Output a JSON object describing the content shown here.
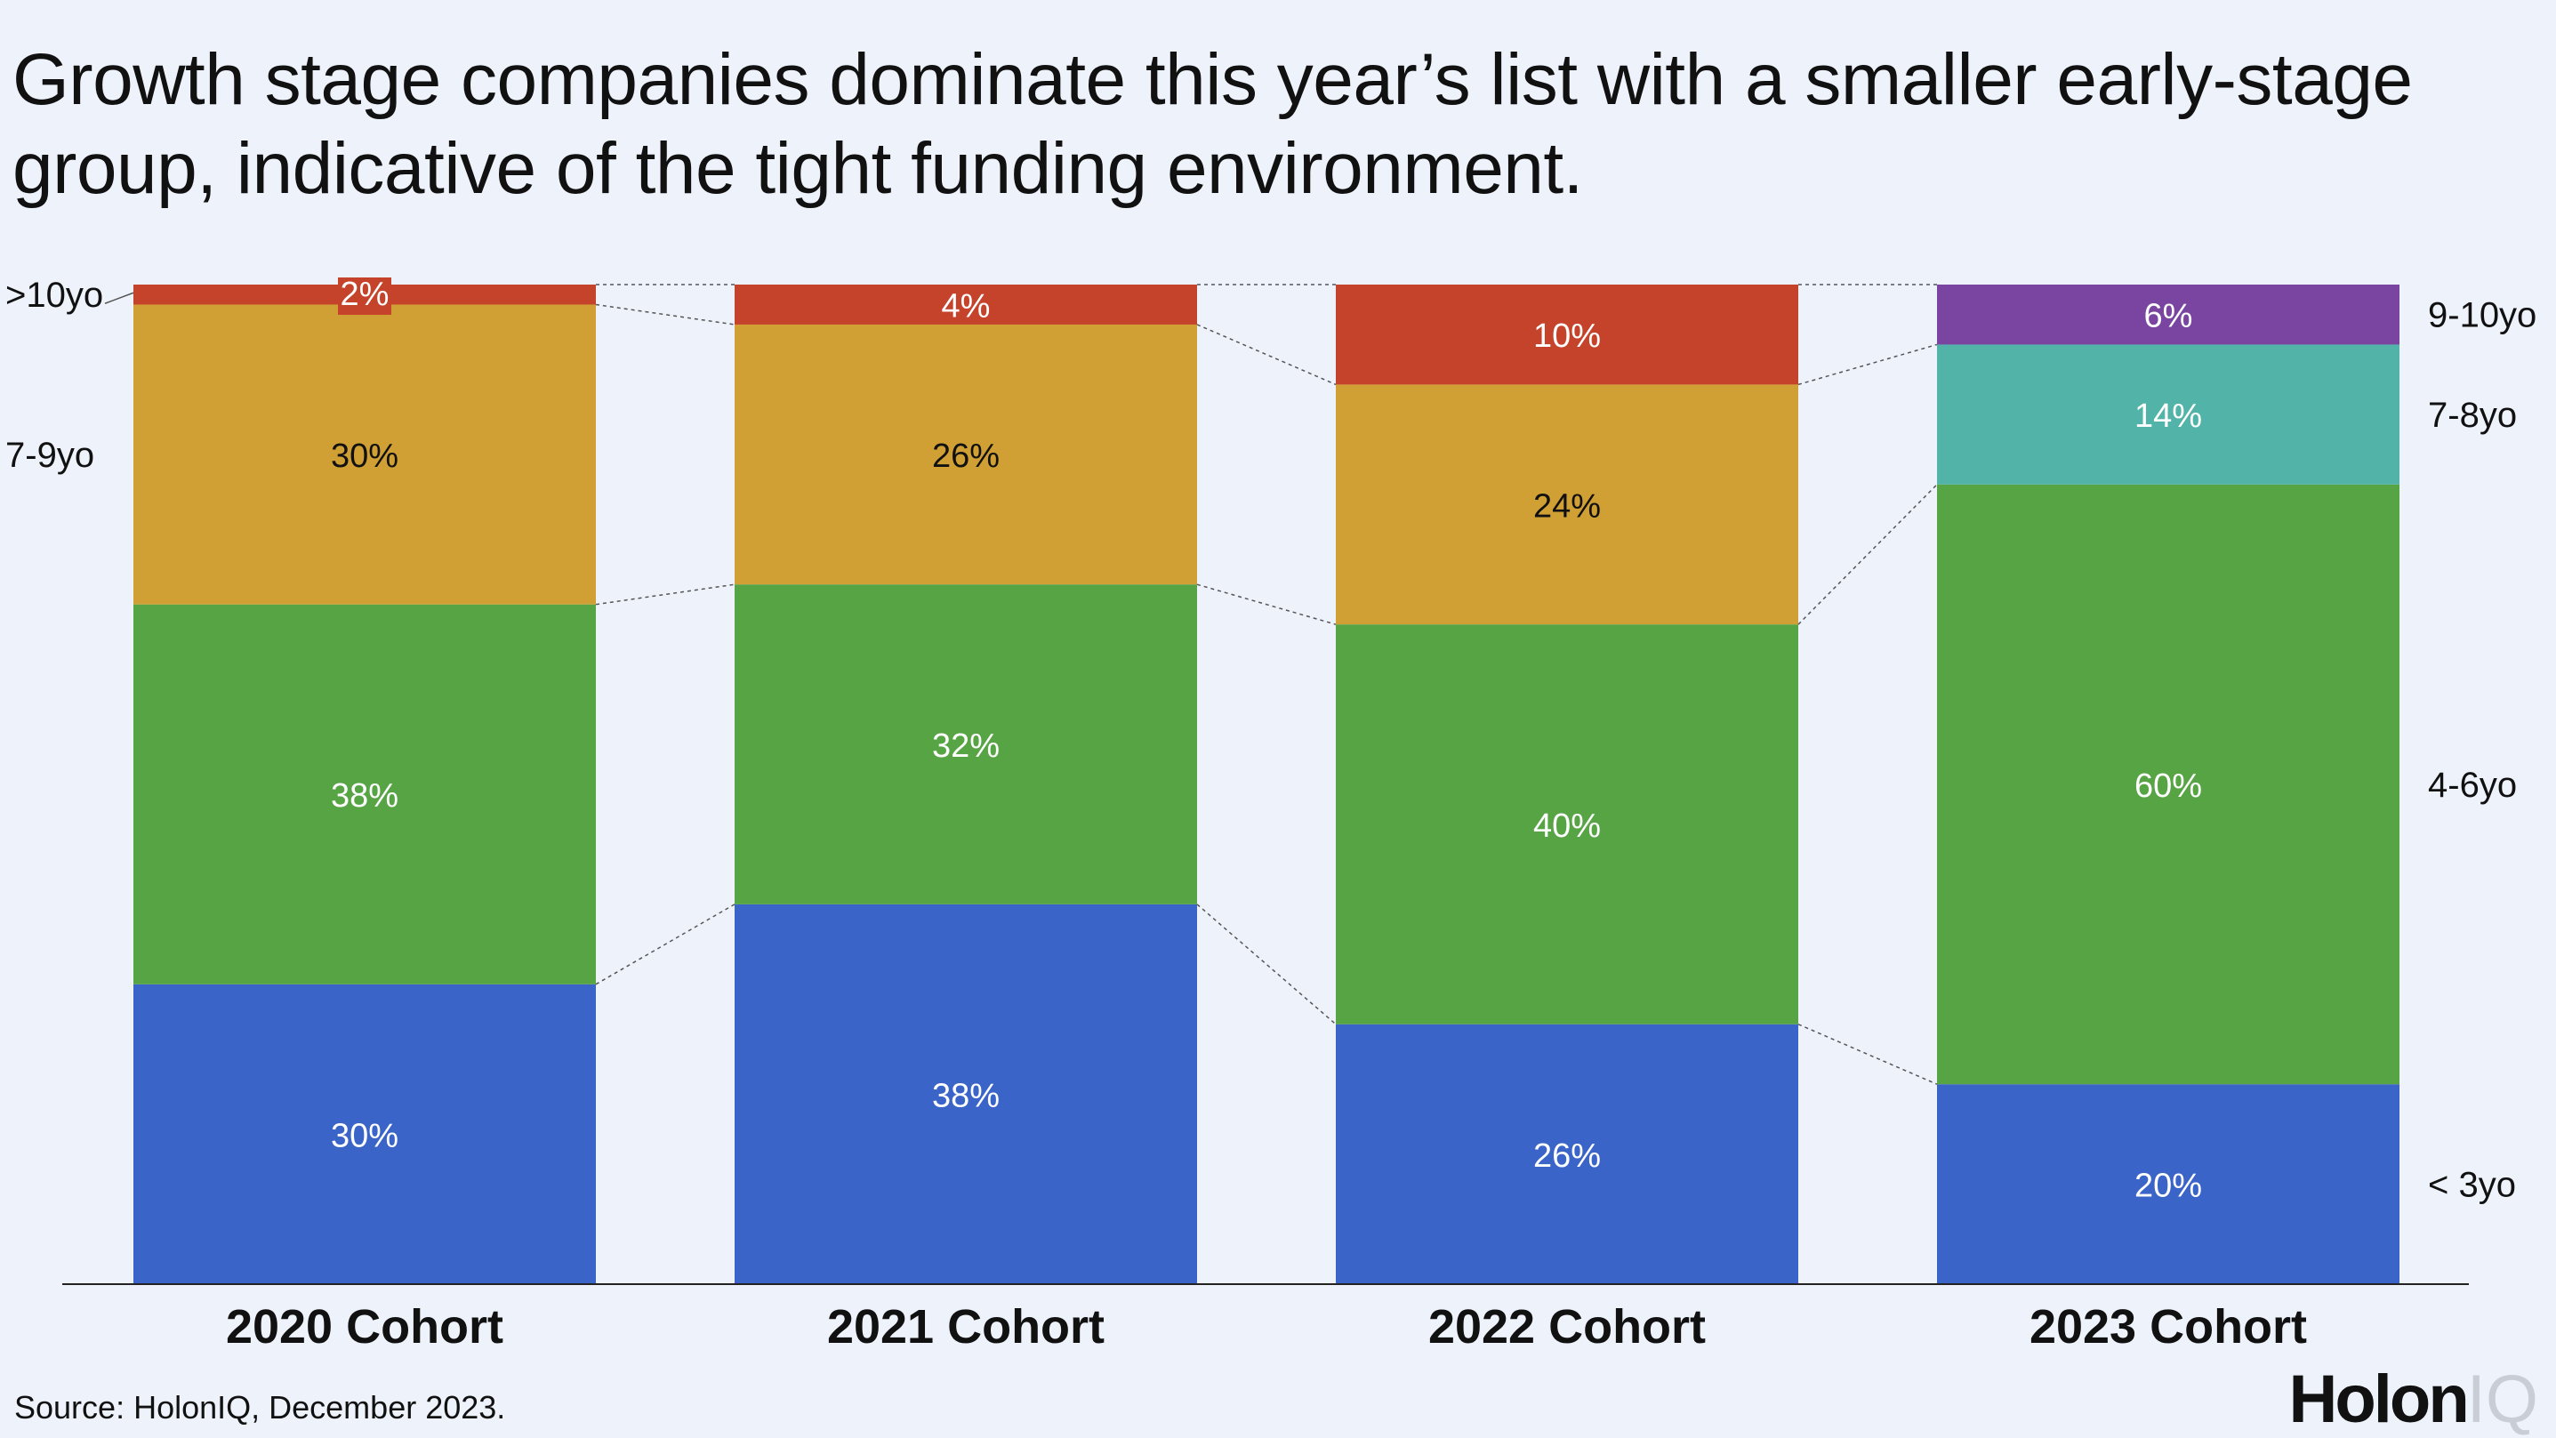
{
  "title": "Growth stage companies dominate this year’s list with a smaller early-stage group, indicative of the tight funding environment.",
  "source": "Source: HolonIQ, December 2023.",
  "logo": {
    "main": "Holon",
    "suffix": "IQ"
  },
  "chart_data": {
    "type": "bar",
    "stacked": true,
    "orientation": "vertical",
    "categories": [
      "2020 Cohort",
      "2021 Cohort",
      "2022 Cohort",
      "2023 Cohort"
    ],
    "ylim": [
      0,
      100
    ],
    "grid": false,
    "series": [
      {
        "name": "< 3yo",
        "values": [
          30,
          38,
          26,
          20
        ],
        "labels": [
          "30%",
          "38%",
          "26%",
          "20%"
        ],
        "color": "#3a64c8"
      },
      {
        "name": "4-6yo",
        "values": [
          38,
          32,
          40,
          60
        ],
        "labels": [
          "38%",
          "32%",
          "40%",
          "60%"
        ],
        "color": "#57a445"
      },
      {
        "name": "7-9yo",
        "values": [
          30,
          26,
          24,
          null
        ],
        "labels": [
          "30%",
          "26%",
          "24%",
          ""
        ],
        "color": "#d0a035"
      },
      {
        "name": ">10yo",
        "values": [
          2,
          4,
          10,
          null
        ],
        "labels": [
          "2%",
          "4%",
          "10%",
          ""
        ],
        "color": "#c4432a"
      },
      {
        "name": "7-8yo",
        "values": [
          null,
          null,
          null,
          14
        ],
        "labels": [
          "",
          "",
          "",
          "14%"
        ],
        "color": "#52b3a8"
      },
      {
        "name": "9-10yo",
        "values": [
          null,
          null,
          null,
          6
        ],
        "labels": [
          "",
          "",
          "",
          "6%"
        ],
        "color": "#7a45a0"
      }
    ],
    "left_legend": [
      ">10yo",
      "7-9yo"
    ],
    "right_legend": [
      "9-10yo",
      "7-8yo",
      "4-6yo",
      "< 3yo"
    ]
  }
}
